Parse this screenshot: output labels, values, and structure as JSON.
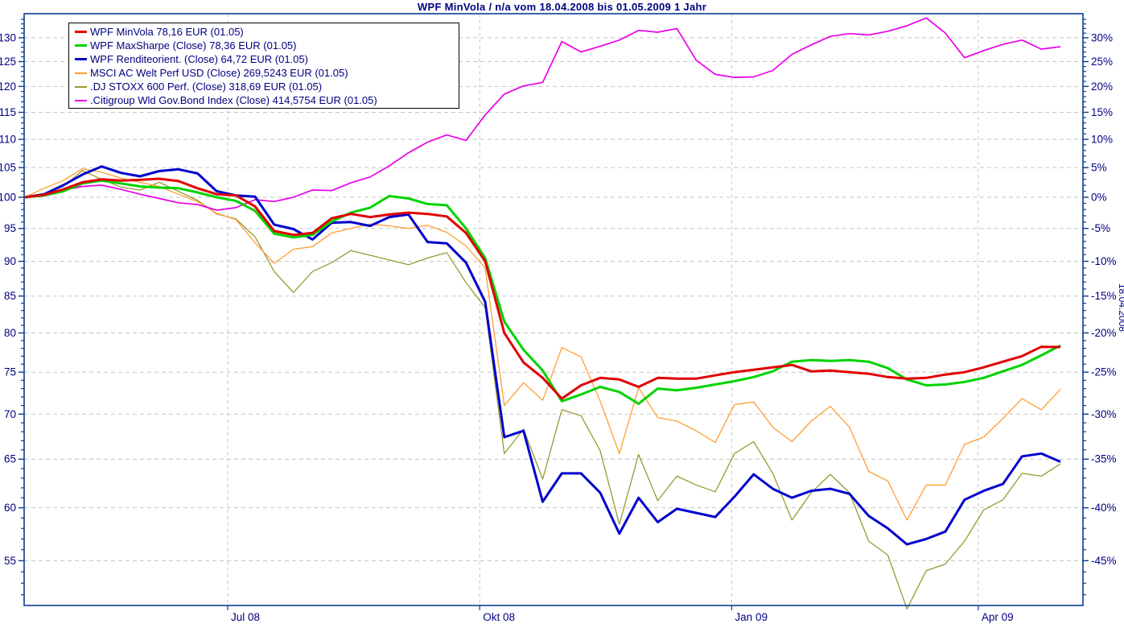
{
  "title": "WPF MinVola / n/a vom 18.04.2008 bis 01.05.2009 1 Jahr",
  "side_annotation": "18.04.2008",
  "colors": {
    "text_navy": "#000080",
    "frame": "#0a3d91",
    "grid": "#c4c4c4",
    "background": "#ffffff",
    "minvola_red": "#e10000",
    "maxsharpe_green": "#00d300",
    "rendite_blue": "#0000cd",
    "msci_orange": "#ff9e33",
    "stoxx_olive": "#999933",
    "citigroup_magenta": "#e800e8"
  },
  "legend": {
    "items": [
      {
        "label": "WPF MinVola 78,16 EUR (01.05)",
        "color": "#e10000",
        "thickness": 3
      },
      {
        "label": "WPF MaxSharpe (Close) 78,36 EUR (01.05)",
        "color": "#00d300",
        "thickness": 3
      },
      {
        "label": "WPF Renditeorient. (Close) 64,72 EUR (01.05)",
        "color": "#0000cd",
        "thickness": 3
      },
      {
        "label": "MSCI AC Welt Perf USD (Close) 269,5243 EUR (01.05)",
        "color": "#ff9e33",
        "thickness": 2
      },
      {
        "label": ".DJ STOXX 600 Perf. (Close) 318,69 EUR (01.05)",
        "color": "#999933",
        "thickness": 2
      },
      {
        "label": ".Citigroup Wld Gov.Bond Index (Close) 414,5754 EUR (01.05)",
        "color": "#e800e8",
        "thickness": 2
      }
    ]
  },
  "chart_data": {
    "type": "line",
    "title": "WPF MinVola / n/a vom 18.04.2008 bis 01.05.2009 1 Jahr",
    "period": {
      "start": "18.04.2008",
      "end": "01.05.2009",
      "label": "1 Jahr",
      "total_days": 378
    },
    "x_axis": {
      "tick_labels": [
        "Jul 08",
        "Okt 08",
        "Jan 09",
        "Apr 09"
      ],
      "tick_day_offsets": [
        74,
        166,
        258,
        348
      ]
    },
    "y_axis": {
      "scale": "log",
      "left_label_ticks": [
        55,
        60,
        65,
        70,
        75,
        80,
        85,
        90,
        95,
        100,
        105,
        110,
        115,
        120,
        125,
        130
      ],
      "right_label_ticks": [
        "-45%",
        "-40%",
        "-35%",
        "-30%",
        "-25%",
        "-20%",
        "-15%",
        "-10%",
        "-5%",
        "0%",
        "5%",
        "10%",
        "15%",
        "20%",
        "25%",
        "30%"
      ],
      "minor_tick_step": 1,
      "minor_tick_range": [
        52,
        134
      ],
      "base_value": 100,
      "grid": "dashed"
    },
    "sampling": "weekly, 55 points from 18.04.2008 to 01.05.2009, indexed to 100",
    "series": [
      {
        "name": "WPF MinVola",
        "end_label": "78,16 EUR (01.05)",
        "color": "#e10000",
        "width": 3,
        "values": [
          100,
          100.4,
          101.3,
          102.5,
          103,
          102.8,
          102.9,
          103.1,
          102.7,
          101.5,
          100.5,
          100.3,
          98.5,
          94.6,
          94,
          94.3,
          96.6,
          97.3,
          96.8,
          97.2,
          97.5,
          97.3,
          96.9,
          94.3,
          90,
          80,
          76.2,
          74.3,
          71.8,
          73.4,
          74.3,
          74.1,
          73.2,
          74.3,
          74.2,
          74.2,
          74.6,
          75,
          75.3,
          75.6,
          75.9,
          75.1,
          75.2,
          75,
          74.8,
          74.4,
          74.2,
          74.3,
          74.7,
          75,
          75.6,
          76.3,
          77,
          78.2,
          78.16
        ]
      },
      {
        "name": "WPF MaxSharpe (Close)",
        "end_label": "78,36 EUR (01.05)",
        "color": "#00d300",
        "width": 3,
        "values": [
          100,
          100.3,
          101,
          102.3,
          102.8,
          102.3,
          101.8,
          101.6,
          101.5,
          100.8,
          100,
          99.4,
          97.8,
          94.2,
          93.6,
          94,
          96.1,
          97.5,
          98.3,
          100.2,
          99.8,
          98.9,
          98.7,
          95,
          90.5,
          81.5,
          77.8,
          75.2,
          71.5,
          72.3,
          73.2,
          72.6,
          71.2,
          73,
          72.8,
          73.1,
          73.5,
          73.9,
          74.4,
          75.1,
          76.3,
          76.5,
          76.4,
          76.5,
          76.3,
          75.5,
          74.1,
          73.4,
          73.5,
          73.8,
          74.3,
          75.1,
          75.9,
          77.1,
          78.36
        ]
      },
      {
        "name": "WPF Renditeorient. (Close)",
        "end_label": "64,72 EUR (01.05)",
        "color": "#0000cd",
        "width": 3,
        "values": [
          100,
          100.5,
          102,
          103.8,
          105.2,
          104.1,
          103.5,
          104.4,
          104.7,
          104,
          101,
          100.3,
          100.1,
          95.6,
          94.9,
          93.3,
          95.9,
          96,
          95.4,
          96.8,
          97.2,
          92.9,
          92.7,
          89.8,
          84.2,
          67.4,
          68.1,
          60.6,
          63.5,
          63.5,
          61.5,
          57.5,
          61,
          58.6,
          59.9,
          59.5,
          59.1,
          61.1,
          63.4,
          61.9,
          61,
          61.7,
          61.9,
          61.4,
          59.2,
          58,
          56.5,
          57,
          57.7,
          60.8,
          61.7,
          62.4,
          65.3,
          65.6,
          64.72
        ]
      },
      {
        "name": "MSCI AC Welt Perf USD (Close)",
        "end_label": "269,5243 EUR (01.05)",
        "color": "#ff9e33",
        "width": 1.3,
        "values": [
          100,
          101.5,
          102.8,
          104.8,
          104.2,
          103.2,
          102.5,
          101.8,
          100.5,
          99.3,
          97.4,
          96.4,
          92.8,
          89.7,
          91.8,
          92.2,
          94.3,
          95,
          95.7,
          95.4,
          95,
          95.5,
          94.4,
          92.3,
          89,
          71,
          73.7,
          71.6,
          78.1,
          76.9,
          71.5,
          65.6,
          73.1,
          69.6,
          69.2,
          68.1,
          66.8,
          71.1,
          71.4,
          68.5,
          66.9,
          69.2,
          70.9,
          68.5,
          63.7,
          62.7,
          58.8,
          62.3,
          62.3,
          66.6,
          67.4,
          69.5,
          71.8,
          70.5,
          72.9
        ]
      },
      {
        "name": ".DJ STOXX 600 Perf. (Close)",
        "end_label": "318,69 EUR (01.05)",
        "color": "#999933",
        "width": 1.3,
        "values": [
          100,
          100.6,
          101.8,
          104.5,
          103,
          101.7,
          101.2,
          102.5,
          101,
          99.5,
          97.3,
          96.5,
          93.7,
          88.5,
          85.5,
          88.5,
          89.8,
          91.6,
          90.9,
          90.2,
          89.5,
          90.5,
          91.3,
          86.9,
          83.4,
          65.6,
          68.3,
          62.9,
          70.5,
          69.8,
          65.9,
          58.4,
          65.5,
          60.7,
          63.2,
          62.3,
          61.6,
          65.6,
          66.9,
          63.5,
          58.8,
          61.5,
          63.4,
          61.5,
          56.8,
          55.5,
          50.8,
          54.1,
          54.7,
          56.8,
          59.8,
          60.8,
          63.5,
          63.2,
          64.5
        ]
      },
      {
        "name": ".Citigroup Wld Gov.Bond Index (Close)",
        "end_label": "414,5754 EUR (01.05)",
        "color": "#e800e8",
        "width": 1.7,
        "values": [
          100,
          100.5,
          101.2,
          101.8,
          102,
          101.3,
          100.5,
          99.8,
          99.1,
          98.8,
          97.9,
          98.3,
          99.6,
          99.3,
          100,
          101.2,
          101.1,
          102.4,
          103.4,
          105.3,
          107.6,
          109.5,
          110.8,
          109.8,
          114.5,
          118.5,
          120.1,
          120.8,
          129.2,
          127,
          128.2,
          129.5,
          131.6,
          131.2,
          132,
          125.3,
          122.4,
          121.8,
          121.9,
          123.2,
          126.5,
          128.5,
          130.3,
          130.9,
          130.6,
          131.4,
          132.6,
          134.3,
          131,
          125.8,
          127.3,
          128.6,
          129.5,
          127.6,
          128.1
        ]
      }
    ]
  }
}
